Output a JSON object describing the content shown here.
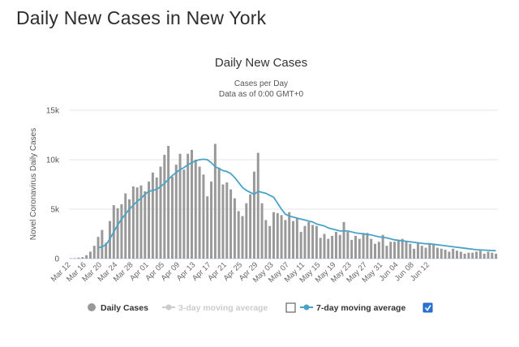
{
  "page": {
    "heading": "Daily New Cases in New York"
  },
  "chart_data": {
    "type": "bar",
    "title": "Daily New Cases",
    "subtitle_line1": "Cases per Day",
    "subtitle_line2": "Data as of 0:00 GMT+0",
    "ylabel": "Novel Coronavirus Daily Cases",
    "xlabel": "",
    "ylim": [
      0,
      15000
    ],
    "y_ticks": [
      0,
      5000,
      10000,
      15000
    ],
    "y_tick_labels": [
      "0",
      "5k",
      "10k",
      "15k"
    ],
    "grid": true,
    "x_tick_labels": [
      "Mar 12",
      "Mar 16",
      "Mar 20",
      "Mar 24",
      "Mar 28",
      "Apr 01",
      "Apr 05",
      "Apr 09",
      "Apr 13",
      "Apr 17",
      "Apr 21",
      "Apr 25",
      "Apr 29",
      "May 03",
      "May 07",
      "May 11",
      "May 15",
      "May 19",
      "May 23",
      "May 27",
      "May 31",
      "Jun 04",
      "Jun 08",
      "Jun 12"
    ],
    "x_tick_every": 4,
    "start_date": "Mar 12",
    "series": [
      {
        "name": "Daily Cases",
        "type": "bar",
        "color": "#999999",
        "values": [
          30,
          50,
          100,
          150,
          350,
          700,
          1300,
          2200,
          2900,
          1600,
          3800,
          5400,
          5100,
          5500,
          6600,
          6000,
          7300,
          7200,
          7400,
          6800,
          7800,
          8700,
          8200,
          9300,
          10500,
          11400,
          8300,
          9500,
          10600,
          9000,
          10600,
          11000,
          10000,
          9300,
          8500,
          6300,
          7800,
          11600,
          9200,
          7500,
          7700,
          7000,
          6100,
          4800,
          4300,
          5600,
          6500,
          8800,
          10700,
          5600,
          3900,
          3300,
          4700,
          4600,
          4400,
          3900,
          4700,
          3800,
          4100,
          2700,
          3300,
          3700,
          3400,
          3300,
          2100,
          2500,
          2000,
          2300,
          2700,
          2400,
          3700,
          2700,
          1900,
          2300,
          2000,
          2600,
          2600,
          2000,
          1500,
          1700,
          2400,
          1300,
          1700,
          1700,
          1800,
          2000,
          1800,
          1500,
          1000,
          1600,
          1300,
          1100,
          1500,
          1400,
          1100,
          1000,
          900,
          700,
          1000,
          800,
          700,
          500,
          600,
          600,
          700,
          800,
          500,
          700,
          600,
          500
        ]
      },
      {
        "name": "7-day moving average",
        "type": "line",
        "color": "#4aa3c7",
        "values": [
          null,
          null,
          null,
          null,
          null,
          null,
          null,
          1100,
          1200,
          1400,
          2000,
          2700,
          3400,
          4000,
          4500,
          5000,
          5400,
          5800,
          6100,
          6500,
          6800,
          6900,
          7000,
          7300,
          7600,
          8000,
          8400,
          8700,
          9000,
          9200,
          9500,
          9700,
          9900,
          10000,
          10050,
          10000,
          9700,
          9300,
          9100,
          8900,
          8800,
          8600,
          8200,
          7700,
          7200,
          6900,
          6700,
          6500,
          6800,
          6700,
          6600,
          6400,
          6200,
          5600,
          5000,
          4500,
          4300,
          4200,
          4100,
          4000,
          3900,
          3800,
          3700,
          3500,
          3400,
          3300,
          3100,
          3000,
          2900,
          2800,
          2800,
          2800,
          2700,
          2600,
          2550,
          2500,
          2450,
          2400,
          2300,
          2200,
          2150,
          2100,
          2000,
          1900,
          1850,
          1800,
          1750,
          1700,
          1650,
          1600,
          1550,
          1500,
          1500,
          1450,
          1400,
          1350,
          1300,
          1250,
          1200,
          1150,
          1100,
          1050,
          1000,
          950,
          900,
          880,
          860,
          840,
          820,
          800
        ]
      }
    ],
    "legend": {
      "items": [
        {
          "label": "Daily Cases",
          "color": "#999999",
          "active": true
        },
        {
          "label": "3-day moving average",
          "color": "#cccccc",
          "active": false
        },
        {
          "label": "7-day moving average",
          "color": "#4aa3c7",
          "active": true
        }
      ],
      "checkbox_3day": false,
      "checkbox_7day": true,
      "placement": "bottom"
    }
  }
}
